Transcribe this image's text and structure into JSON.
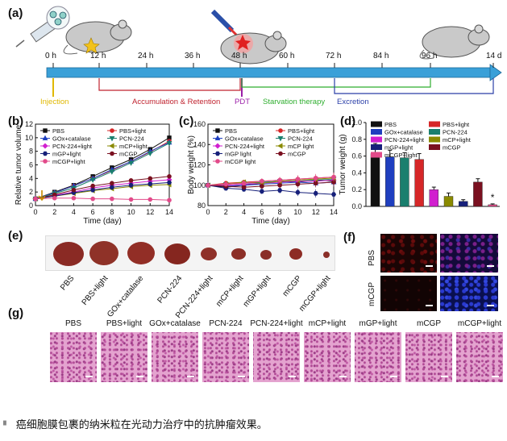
{
  "panels": {
    "a": "(a)",
    "b": "(b)",
    "c": "(c)",
    "d": "(d)",
    "e": "(e)",
    "f": "(f)",
    "g": "(g)"
  },
  "timeline": {
    "ticks": [
      "0 h",
      "12 h",
      "24 h",
      "36 h",
      "48 h",
      "60 h",
      "72 h",
      "84 h",
      "96 h",
      "14 d"
    ],
    "phases": {
      "injection": "Injection",
      "accumulation": "Accumulation & Retention",
      "pdt": "PDT",
      "starvation": "Starvation therapy",
      "excretion": "Excretion"
    },
    "colors": {
      "injection": "#e0b800",
      "accumulation": "#c0232f",
      "pdt": "#9b1fa8",
      "starvation": "#2fae2f",
      "excretion": "#2b3fa8",
      "arrow": "#3aa0d8"
    }
  },
  "charts": {
    "b": {
      "ylabel": "Relative tumor volume",
      "xlabel": "Time (day)",
      "yticks": [
        "0",
        "2",
        "4",
        "6",
        "8",
        "10",
        "12"
      ],
      "xticks": [
        "0",
        "2",
        "4",
        "6",
        "8",
        "10",
        "12",
        "14"
      ]
    },
    "c": {
      "ylabel": "Body weight (%)",
      "xlabel": "Time (day)",
      "yticks": [
        "80",
        "100",
        "120",
        "140",
        "160"
      ],
      "xticks": [
        "0",
        "2",
        "4",
        "6",
        "8",
        "10",
        "12",
        "14"
      ]
    },
    "d": {
      "ylabel": "Tumor weight (g)",
      "yticks": [
        "0.0",
        "0.2",
        "0.4",
        "0.6",
        "0.8",
        "1.0"
      ]
    }
  },
  "legend": [
    {
      "name": "PBS",
      "color": "#111111"
    },
    {
      "name": "PBS+light",
      "color": "#d62728"
    },
    {
      "name": "GOx+catalase",
      "color": "#1f3fbf"
    },
    {
      "name": "PCN-224",
      "color": "#1a7f6e"
    },
    {
      "name": "PCN-224+light",
      "color": "#d11fcf"
    },
    {
      "name": "mCP light",
      "color": "#8a8a00"
    },
    {
      "name": "mGP light",
      "color": "#17207a"
    },
    {
      "name": "mCGP",
      "color": "#7a1020"
    },
    {
      "name": "mCGP light",
      "color": "#e24a8a"
    }
  ],
  "legend_b": [
    {
      "name": "PBS",
      "color": "#111111"
    },
    {
      "name": "PBS+light",
      "color": "#d62728"
    },
    {
      "name": "GOx+catalase",
      "color": "#1f3fbf"
    },
    {
      "name": "PCN-224",
      "color": "#1a7f6e"
    },
    {
      "name": "PCN-224+light",
      "color": "#d11fcf"
    },
    {
      "name": "mCP+light",
      "color": "#8a8a00"
    },
    {
      "name": "mGP+light",
      "color": "#17207a"
    },
    {
      "name": "mCGP",
      "color": "#7a1020"
    },
    {
      "name": "mCGP+light",
      "color": "#e24a8a"
    }
  ],
  "chart_data": [
    {
      "type": "line",
      "panel": "b",
      "xlabel": "Time (day)",
      "ylabel": "Relative tumor volume",
      "ylim": [
        0,
        12
      ],
      "x": [
        0,
        2,
        4,
        6,
        8,
        10,
        12,
        14
      ],
      "series": [
        {
          "name": "PBS",
          "values": [
            1,
            2.0,
            3.0,
            4.3,
            5.6,
            6.8,
            8.3,
            10.0
          ]
        },
        {
          "name": "PBS+light",
          "values": [
            1,
            1.9,
            2.9,
            4.0,
            5.2,
            6.5,
            7.9,
            9.5
          ]
        },
        {
          "name": "GOx+catalase",
          "values": [
            1,
            1.9,
            2.9,
            4.0,
            5.3,
            6.5,
            8.0,
            9.3
          ]
        },
        {
          "name": "PCN-224",
          "values": [
            1,
            1.8,
            2.6,
            3.8,
            5.0,
            6.3,
            7.7,
            9.2
          ]
        },
        {
          "name": "PCN-224+light",
          "values": [
            1,
            1.5,
            2.0,
            2.6,
            3.0,
            3.3,
            3.6,
            3.8
          ]
        },
        {
          "name": "mCP+light",
          "values": [
            1,
            1.4,
            1.8,
            2.2,
            2.5,
            2.8,
            3.0,
            3.1
          ]
        },
        {
          "name": "mGP+light",
          "values": [
            1,
            1.4,
            1.9,
            2.3,
            2.7,
            3.0,
            3.2,
            3.4
          ]
        },
        {
          "name": "mCGP",
          "values": [
            1,
            1.6,
            2.3,
            2.9,
            3.3,
            3.7,
            4.0,
            4.3
          ]
        },
        {
          "name": "mCGP+light",
          "values": [
            1,
            1.1,
            1.1,
            1.0,
            1.0,
            0.9,
            0.9,
            0.8
          ]
        }
      ]
    },
    {
      "type": "line",
      "panel": "c",
      "xlabel": "Time (day)",
      "ylabel": "Body weight (%)",
      "ylim": [
        80,
        160
      ],
      "x": [
        0,
        2,
        4,
        6,
        8,
        10,
        12,
        14
      ],
      "series": [
        {
          "name": "PBS",
          "values": [
            100,
            98,
            100,
            102,
            104,
            103,
            105,
            104
          ]
        },
        {
          "name": "PBS+light",
          "values": [
            100,
            102,
            103,
            104,
            105,
            106,
            107,
            108
          ]
        },
        {
          "name": "GOx+catalase",
          "values": [
            100,
            99,
            100,
            101,
            102,
            103,
            102,
            103
          ]
        },
        {
          "name": "PCN-224",
          "values": [
            100,
            101,
            102,
            103,
            104,
            104,
            105,
            106
          ]
        },
        {
          "name": "PCN-224+light",
          "values": [
            100,
            100,
            101,
            102,
            103,
            104,
            104,
            105
          ]
        },
        {
          "name": "mCP light",
          "values": [
            100,
            101,
            103,
            102,
            104,
            105,
            106,
            107
          ]
        },
        {
          "name": "mGP light",
          "values": [
            100,
            97,
            96,
            94,
            95,
            93,
            92,
            91
          ]
        },
        {
          "name": "mCGP",
          "values": [
            100,
            99,
            98,
            99,
            100,
            101,
            102,
            103
          ]
        },
        {
          "name": "mCGP light",
          "values": [
            100,
            101,
            102,
            104,
            105,
            106,
            107,
            108
          ]
        }
      ]
    },
    {
      "type": "bar",
      "panel": "d",
      "ylabel": "Tumor weight (g)",
      "ylim": [
        0,
        1.0
      ],
      "categories": [
        "PBS",
        "GOx+catalase",
        "PCN-224",
        "PBS+light",
        "PCN-224+light",
        "mCP+light",
        "mGP+light",
        "mCGP",
        "mCGP+light"
      ],
      "values": [
        0.63,
        0.59,
        0.58,
        0.56,
        0.2,
        0.12,
        0.06,
        0.29,
        0.02
      ],
      "errors": [
        0.12,
        0.08,
        0.06,
        0.07,
        0.03,
        0.04,
        0.02,
        0.04,
        0.01
      ],
      "annotations": [
        "*"
      ]
    }
  ],
  "legend_d": [
    {
      "name": "PBS",
      "color": "#111111"
    },
    {
      "name": "PBS+light",
      "color": "#d62728"
    },
    {
      "name": "GOx+catalase",
      "color": "#1f3fbf"
    },
    {
      "name": "PCN-224",
      "color": "#1a7f6e"
    },
    {
      "name": "PCN-224+light",
      "color": "#d11fcf"
    },
    {
      "name": "mCP+light",
      "color": "#8a8a00"
    },
    {
      "name": "mGP+light",
      "color": "#17207a"
    },
    {
      "name": "mCGP",
      "color": "#7a1020"
    },
    {
      "name": "mCGP+light",
      "color": "#e24a8a"
    }
  ],
  "tumors": {
    "labels": [
      "PBS",
      "PBS+light",
      "GOx+catalase",
      "PCN-224",
      "PCN-224+light",
      "mCP+light",
      "mGP+light",
      "mCGP",
      "mCGP+light"
    ]
  },
  "fluorescence": {
    "row_labels": [
      "PBS",
      "mCGP"
    ]
  },
  "histology": {
    "labels": [
      "PBS",
      "PBS+light",
      "GOx+catalase",
      "PCN-224",
      "PCN-224+light",
      "mCP+light",
      "mGP+light",
      "mCGP",
      "mCGP+light"
    ]
  },
  "caption": "癌细胞膜包裹的纳米粒在光动力治疗中的抗肿瘤效果。"
}
